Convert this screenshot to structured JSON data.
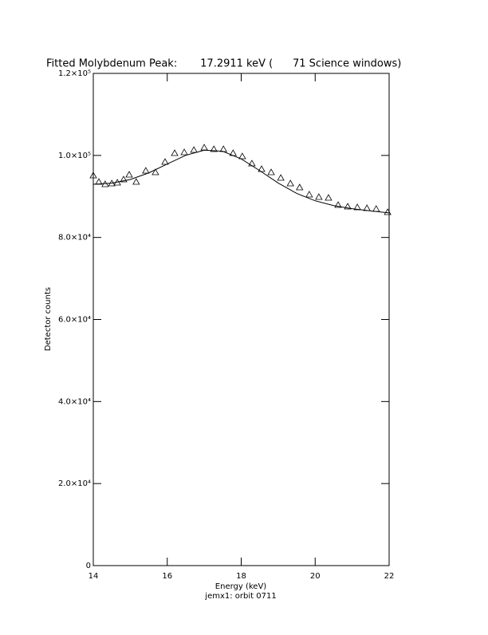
{
  "chart_data": {
    "type": "scatter",
    "title": "Fitted Molybdenum Peak:       17.2911 keV (      71 Science windows)",
    "x_label": "Energy (keV)",
    "subtitle": "jemx1: orbit 0711",
    "y_label": "Detector counts",
    "color": "#000000",
    "xlim": [
      14,
      22
    ],
    "xticks": [
      14,
      16,
      18,
      20,
      22
    ],
    "ylim": [
      0,
      120000
    ],
    "yticks": [
      0,
      {
        "value": 20000,
        "label": "2.0×10⁴"
      },
      {
        "value": 40000,
        "label": "4.0×10⁴"
      },
      {
        "value": 60000,
        "label": "6.0×10⁴"
      },
      {
        "value": 80000,
        "label": "8.0×10⁴"
      },
      {
        "value": 100000,
        "label": "1.0×10⁵"
      },
      {
        "value": 120000,
        "label": "1.2×10⁵"
      }
    ],
    "points": {
      "x": [
        14.0,
        14.15,
        14.32,
        14.5,
        14.65,
        14.82,
        14.97,
        15.16,
        15.42,
        15.68,
        15.94,
        16.2,
        16.46,
        16.72,
        17.0,
        17.26,
        17.52,
        17.78,
        18.03,
        18.29,
        18.55,
        18.81,
        19.07,
        19.33,
        19.58,
        19.84,
        20.1,
        20.36,
        20.62,
        20.88,
        21.14,
        21.4,
        21.65,
        21.96
      ],
      "values": [
        95100,
        93550,
        92970,
        93160,
        93360,
        94130,
        95300,
        93550,
        96270,
        95880,
        98410,
        100550,
        100750,
        101330,
        101910,
        101520,
        101520,
        100550,
        99770,
        98020,
        96660,
        95880,
        94520,
        93160,
        92190,
        90440,
        89850,
        89660,
        87910,
        87520,
        87330,
        87130,
        86940,
        86160
      ]
    },
    "fit": {
      "x": [
        14,
        14.5,
        15,
        15.5,
        16,
        16.5,
        17,
        17.5,
        18,
        18.5,
        19,
        19.5,
        20,
        20.5,
        21,
        21.5,
        22
      ],
      "values": [
        92970,
        93240,
        94130,
        95740,
        97910,
        100030,
        101280,
        101010,
        99160,
        96300,
        93280,
        90740,
        88940,
        87770,
        87010,
        86470,
        86000
      ]
    }
  }
}
